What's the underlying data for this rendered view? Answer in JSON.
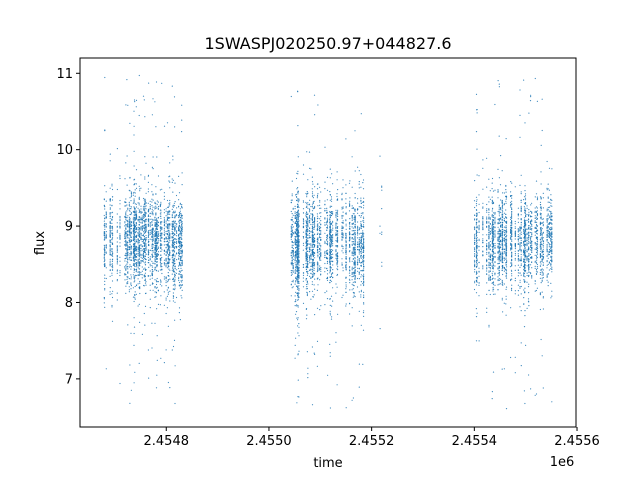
{
  "chart_data": {
    "type": "scatter",
    "title": "1SWASPJ020250.97+044827.6",
    "xlabel": "time",
    "ylabel": "flux",
    "x_offset_label": "1e6",
    "xlim": [
      2454632,
      2455598
    ],
    "ylim": [
      6.37,
      11.2
    ],
    "xticks": [
      {
        "value": 2454800,
        "label": "2.4548"
      },
      {
        "value": 2455000,
        "label": "2.4550"
      },
      {
        "value": 2455200,
        "label": "2.4552"
      },
      {
        "value": 2455400,
        "label": "2.4554"
      },
      {
        "value": 2455600,
        "label": "2.4556"
      }
    ],
    "yticks": [
      {
        "value": 7,
        "label": "7"
      },
      {
        "value": 8,
        "label": "8"
      },
      {
        "value": 9,
        "label": "9"
      },
      {
        "value": 10,
        "label": "10"
      },
      {
        "value": 11,
        "label": "11"
      }
    ],
    "grid": false,
    "color": "#1f77b4",
    "segments": [
      {
        "t_start": 2454677,
        "t_end": 2454831,
        "nights": 70,
        "points": 2600,
        "flux_mean": 8.8,
        "flux_sd": 0.32,
        "outlier_fraction": 0.06,
        "outlier_range": [
          6.6,
          11.0
        ]
      },
      {
        "t_start": 2455041,
        "t_end": 2455189,
        "nights": 65,
        "points": 2400,
        "flux_mean": 8.75,
        "flux_sd": 0.32,
        "outlier_fraction": 0.05,
        "outlier_range": [
          6.6,
          10.8
        ]
      },
      {
        "t_start": 2455212,
        "t_end": 2455222,
        "nights": 2,
        "points": 12,
        "flux_mean": 9.0,
        "flux_sd": 0.9,
        "outlier_fraction": 0.0,
        "outlier_range": [
          7.4,
          10.5
        ]
      },
      {
        "t_start": 2455400,
        "t_end": 2455554,
        "nights": 55,
        "points": 2200,
        "flux_mean": 8.8,
        "flux_sd": 0.3,
        "outlier_fraction": 0.05,
        "outlier_range": [
          6.6,
          10.95
        ]
      }
    ]
  }
}
